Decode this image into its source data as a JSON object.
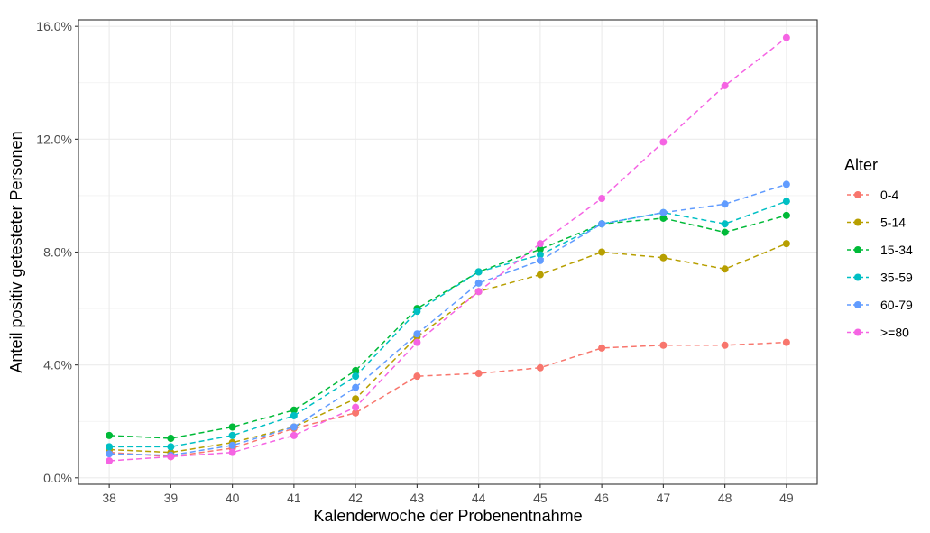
{
  "chart_data": {
    "type": "line",
    "xlabel": "Kalenderwoche der Probenentnahme",
    "ylabel": "Anteil positiv getesteter Personen",
    "x": [
      38,
      39,
      40,
      41,
      42,
      43,
      44,
      45,
      46,
      47,
      48,
      49
    ],
    "xlim": [
      37.5,
      49.5
    ],
    "ylim": [
      0,
      0.16
    ],
    "yticks": [
      0,
      0.04,
      0.08,
      0.12,
      0.16
    ],
    "ytick_labels": [
      "0.0%",
      "4.0%",
      "8.0%",
      "12.0%",
      "16.0%"
    ],
    "xtick_labels": [
      "38",
      "39",
      "40",
      "41",
      "42",
      "43",
      "44",
      "45",
      "46",
      "47",
      "48",
      "49"
    ],
    "grid": true,
    "legend_title": "Alter",
    "legend_position": "right",
    "series": [
      {
        "name": "0-4",
        "color": "#F8766D",
        "values": [
          0.009,
          0.0075,
          0.0105,
          0.0175,
          0.023,
          0.036,
          0.037,
          0.039,
          0.046,
          0.047,
          0.047,
          0.048
        ]
      },
      {
        "name": "5-14",
        "color": "#B79F00",
        "values": [
          0.01,
          0.009,
          0.0125,
          0.018,
          0.028,
          0.05,
          0.066,
          0.072,
          0.08,
          0.078,
          0.074,
          0.083
        ]
      },
      {
        "name": "15-34",
        "color": "#00BA38",
        "values": [
          0.015,
          0.014,
          0.018,
          0.024,
          0.038,
          0.06,
          0.073,
          0.081,
          0.09,
          0.092,
          0.087,
          0.093
        ]
      },
      {
        "name": "35-59",
        "color": "#00BFC4",
        "values": [
          0.011,
          0.011,
          0.015,
          0.022,
          0.036,
          0.059,
          0.073,
          0.079,
          0.09,
          0.094,
          0.09,
          0.098
        ]
      },
      {
        "name": "60-79",
        "color": "#619CFF",
        "values": [
          0.0085,
          0.008,
          0.0115,
          0.018,
          0.032,
          0.051,
          0.069,
          0.077,
          0.09,
          0.094,
          0.097,
          0.104
        ]
      },
      {
        "name": ">=80",
        "color": "#F564E3",
        "values": [
          0.006,
          0.0075,
          0.009,
          0.015,
          0.025,
          0.048,
          0.066,
          0.083,
          0.099,
          0.119,
          0.139,
          0.156
        ]
      }
    ]
  }
}
